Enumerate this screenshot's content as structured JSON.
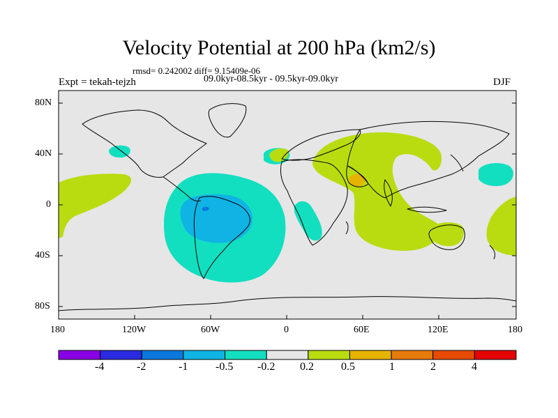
{
  "title": "Velocity Potential at 200 hPa (km2/s)",
  "stats": "rmsd= 0.242002 diff= 9.15409e-06",
  "experiment": "Expt = tekah-tejzh",
  "period": "09.0kyr-08.5kyr - 09.5kyr-09.0kyr",
  "season": "DJF",
  "lat_ticks": [
    "80N",
    "40N",
    "0",
    "40S",
    "80S"
  ],
  "lon_ticks": [
    "180",
    "120W",
    "60W",
    "0",
    "60E",
    "120E",
    "180"
  ],
  "colorbar": {
    "labels": [
      "-4",
      "-2",
      "-1",
      "-0.5",
      "-0.2",
      "0.2",
      "0.5",
      "1",
      "2",
      "4"
    ],
    "colors": [
      "#8a00e6",
      "#2a2ae0",
      "#0a78dc",
      "#0fb4e4",
      "#12dfc0",
      "#e6e6e6",
      "#b9dc10",
      "#e6b400",
      "#e67a0a",
      "#e64b00",
      "#e60000"
    ]
  },
  "palette": {
    "background": "#e6e6e6",
    "neg_weak": "#12dfc0",
    "neg_mid": "#0fb4e4",
    "neg_strong": "#0a78dc",
    "pos_weak": "#b9dc10",
    "pos_mid": "#e6b400"
  }
}
